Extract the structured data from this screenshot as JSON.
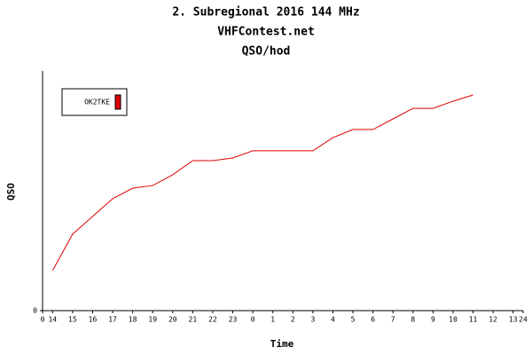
{
  "chart_data": {
    "type": "line",
    "title": "2. Subregional 2016 144 MHz",
    "subtitle": "VHFContest.net",
    "y_title": "QSO/hod",
    "x_label": "Time",
    "y_label": "QSO",
    "x": [
      0.5,
      1.5,
      2.5,
      3.5,
      4.5,
      5.5,
      6.5,
      7.5,
      8.5,
      9.5,
      10.5,
      11.5,
      12.5,
      13.5,
      14.5,
      15.5,
      16.5,
      17.5,
      18.5,
      19.5,
      20.5,
      21.5
    ],
    "series": [
      {
        "name": "OK2TKE",
        "color": "#e00000",
        "values": [
          16.7,
          31.9,
          39.3,
          46.7,
          51.1,
          52.2,
          56.7,
          62.6,
          62.6,
          63.7,
          66.7,
          66.7,
          66.7,
          66.7,
          72.2,
          75.6,
          75.6,
          80,
          84.4,
          84.4,
          87.4,
          90
        ]
      }
    ],
    "xlim": [
      0,
      24
    ],
    "ylim": [
      0,
      100
    ],
    "xticks": [
      {
        "value": 0,
        "label": "0"
      },
      {
        "value": 0.5,
        "label": "14"
      },
      {
        "value": 1.5,
        "label": "15"
      },
      {
        "value": 2.5,
        "label": "16"
      },
      {
        "value": 3.5,
        "label": "17"
      },
      {
        "value": 4.5,
        "label": "18"
      },
      {
        "value": 5.5,
        "label": "19"
      },
      {
        "value": 6.5,
        "label": "20"
      },
      {
        "value": 7.5,
        "label": "21"
      },
      {
        "value": 8.5,
        "label": "22"
      },
      {
        "value": 9.5,
        "label": "23"
      },
      {
        "value": 10.5,
        "label": "0"
      },
      {
        "value": 11.5,
        "label": "1"
      },
      {
        "value": 12.5,
        "label": "2"
      },
      {
        "value": 13.5,
        "label": "3"
      },
      {
        "value": 14.5,
        "label": "4"
      },
      {
        "value": 15.5,
        "label": "5"
      },
      {
        "value": 16.5,
        "label": "6"
      },
      {
        "value": 17.5,
        "label": "7"
      },
      {
        "value": 18.5,
        "label": "8"
      },
      {
        "value": 19.5,
        "label": "9"
      },
      {
        "value": 20.5,
        "label": "10"
      },
      {
        "value": 21.5,
        "label": "11"
      },
      {
        "value": 22.5,
        "label": "12"
      },
      {
        "value": 23.5,
        "label": "13"
      },
      {
        "value": 24,
        "label": "24"
      }
    ],
    "yticks": [
      0
    ],
    "grid": false
  }
}
